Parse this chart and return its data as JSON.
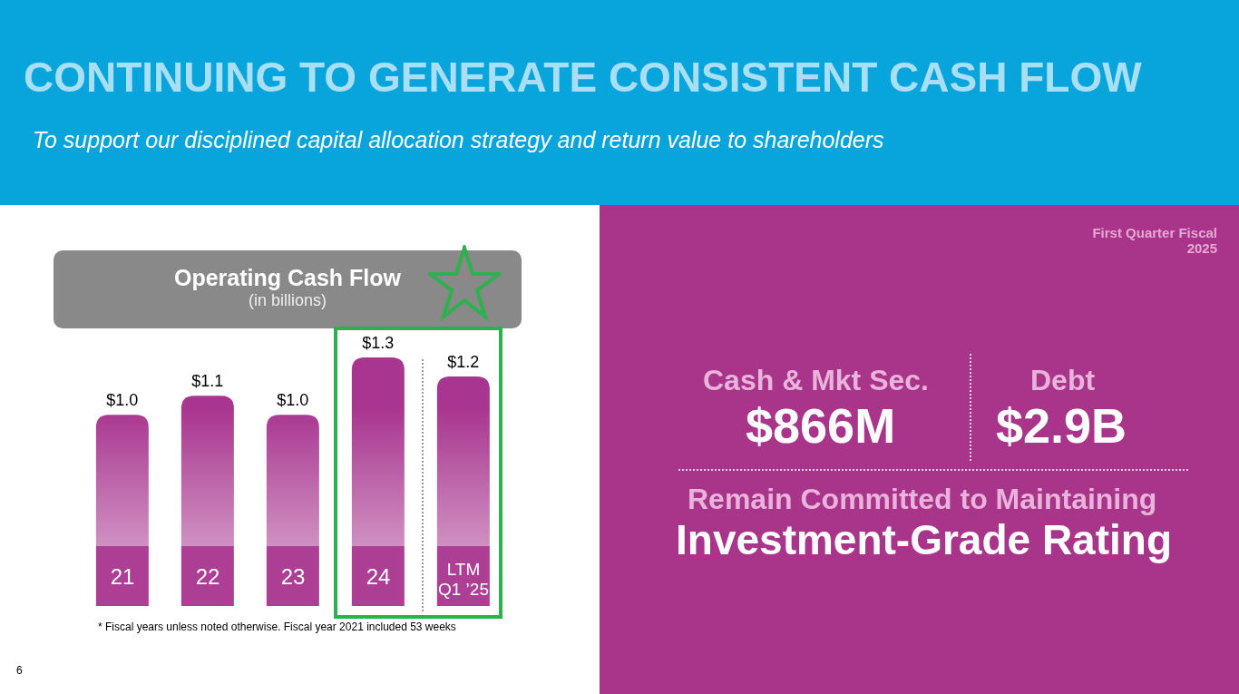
{
  "chart_data": [
    {
      "type": "other",
      "title": "CONTINUING TO GENERATE CONSISTENT CASH FLOW",
      "subtitle": "To support our disciplined capital allocation strategy and return value to shareholders"
    },
    {
      "type": "bar",
      "title": "Operating Cash Flow",
      "subtitle": "(in billions)",
      "categories": [
        "21",
        "22",
        "23",
        "24",
        "LTM Q1 ’25"
      ],
      "values": [
        1.0,
        1.1,
        1.0,
        1.3,
        1.2
      ],
      "value_labels": [
        "$1.0",
        "$1.1",
        "$1.0",
        "$1.3",
        "$1.2"
      ],
      "color": "#a8358f",
      "annotations": [
        "* Fiscal years unless noted otherwise. Fiscal year 2021 included 53 weeks",
        "6"
      ]
    },
    {
      "type": "other",
      "title": "First Quarter Fiscal 2025",
      "annotations": [
        "Cash & Mkt Sec.",
        "$866M",
        "Debt",
        "$2.9B",
        "Remain Committed to Maintaining",
        "Investment-Grade Rating"
      ]
    }
  ]
}
